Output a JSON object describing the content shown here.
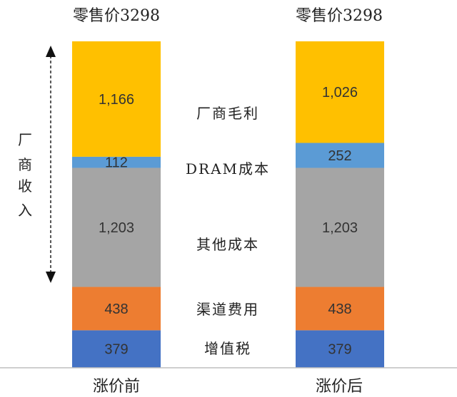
{
  "chart_data": {
    "type": "bar",
    "stacked": true,
    "categories": [
      "涨价前",
      "涨价后"
    ],
    "top_labels": [
      "零售价3298",
      "零售价3298"
    ],
    "series": [
      {
        "name": "增值税",
        "values": [
          379,
          379
        ],
        "color": "#4472C4"
      },
      {
        "name": "渠道费用",
        "values": [
          438,
          438
        ],
        "color": "#ED7D31"
      },
      {
        "name": "其他成本",
        "values": [
          1203,
          1203
        ],
        "color": "#A5A5A5"
      },
      {
        "name": "DRAM成本",
        "values": [
          112,
          252
        ],
        "color": "#5B9BD5"
      },
      {
        "name": "厂商毛利",
        "values": [
          1166,
          1026
        ],
        "color": "#FFC000"
      }
    ],
    "data_labels": [
      [
        "379",
        "438",
        "1,203",
        "112",
        "1,166"
      ],
      [
        "379",
        "438",
        "1,203",
        "252",
        "1,026"
      ]
    ],
    "ylim": [
      0,
      3298
    ],
    "bracket_label": [
      "厂",
      "商",
      "收",
      "入"
    ],
    "grid": false,
    "legend": "center-between-bars"
  }
}
